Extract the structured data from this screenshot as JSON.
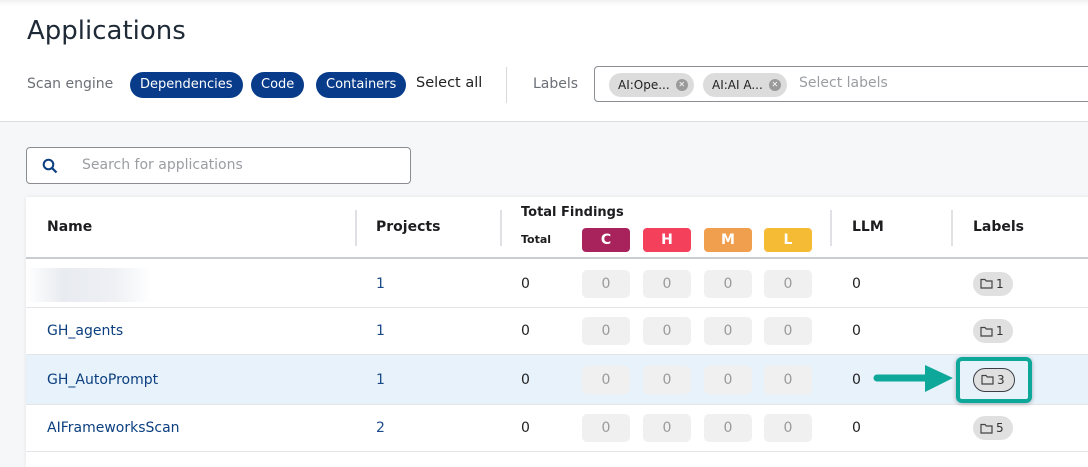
{
  "page_title": "Applications",
  "filters": {
    "scan_engine_label": "Scan engine",
    "engines": [
      "Dependencies",
      "Code",
      "Containers"
    ],
    "select_all": "Select all",
    "labels_label": "Labels",
    "selected_labels": [
      "AI:Ope...",
      "AI:AI A..."
    ],
    "labels_placeholder": "Select labels"
  },
  "search": {
    "placeholder": "Search for applications"
  },
  "table": {
    "headers": {
      "name": "Name",
      "projects": "Projects",
      "total_findings": "Total Findings",
      "total": "Total",
      "critical": "C",
      "high": "H",
      "medium": "M",
      "low": "L",
      "llm": "LLM",
      "labels": "Labels"
    },
    "severity_colors": {
      "C": "#a8235c",
      "H": "#f5405c",
      "M": "#ef9f4d",
      "L": "#f6bb35"
    },
    "rows": [
      {
        "name": "",
        "projects": "1",
        "total": "0",
        "c": "0",
        "h": "0",
        "m": "0",
        "l": "0",
        "llm": "0",
        "labels": "1"
      },
      {
        "name": "GH_agents",
        "projects": "1",
        "total": "0",
        "c": "0",
        "h": "0",
        "m": "0",
        "l": "0",
        "llm": "0",
        "labels": "1"
      },
      {
        "name": "GH_AutoPrompt",
        "projects": "1",
        "total": "0",
        "c": "0",
        "h": "0",
        "m": "0",
        "l": "0",
        "llm": "0",
        "labels": "3",
        "highlighted": true
      },
      {
        "name": "AIFrameworksScan",
        "projects": "2",
        "total": "0",
        "c": "0",
        "h": "0",
        "m": "0",
        "l": "0",
        "llm": "0",
        "labels": "5"
      }
    ]
  },
  "annotation_color": "#0ea89a"
}
